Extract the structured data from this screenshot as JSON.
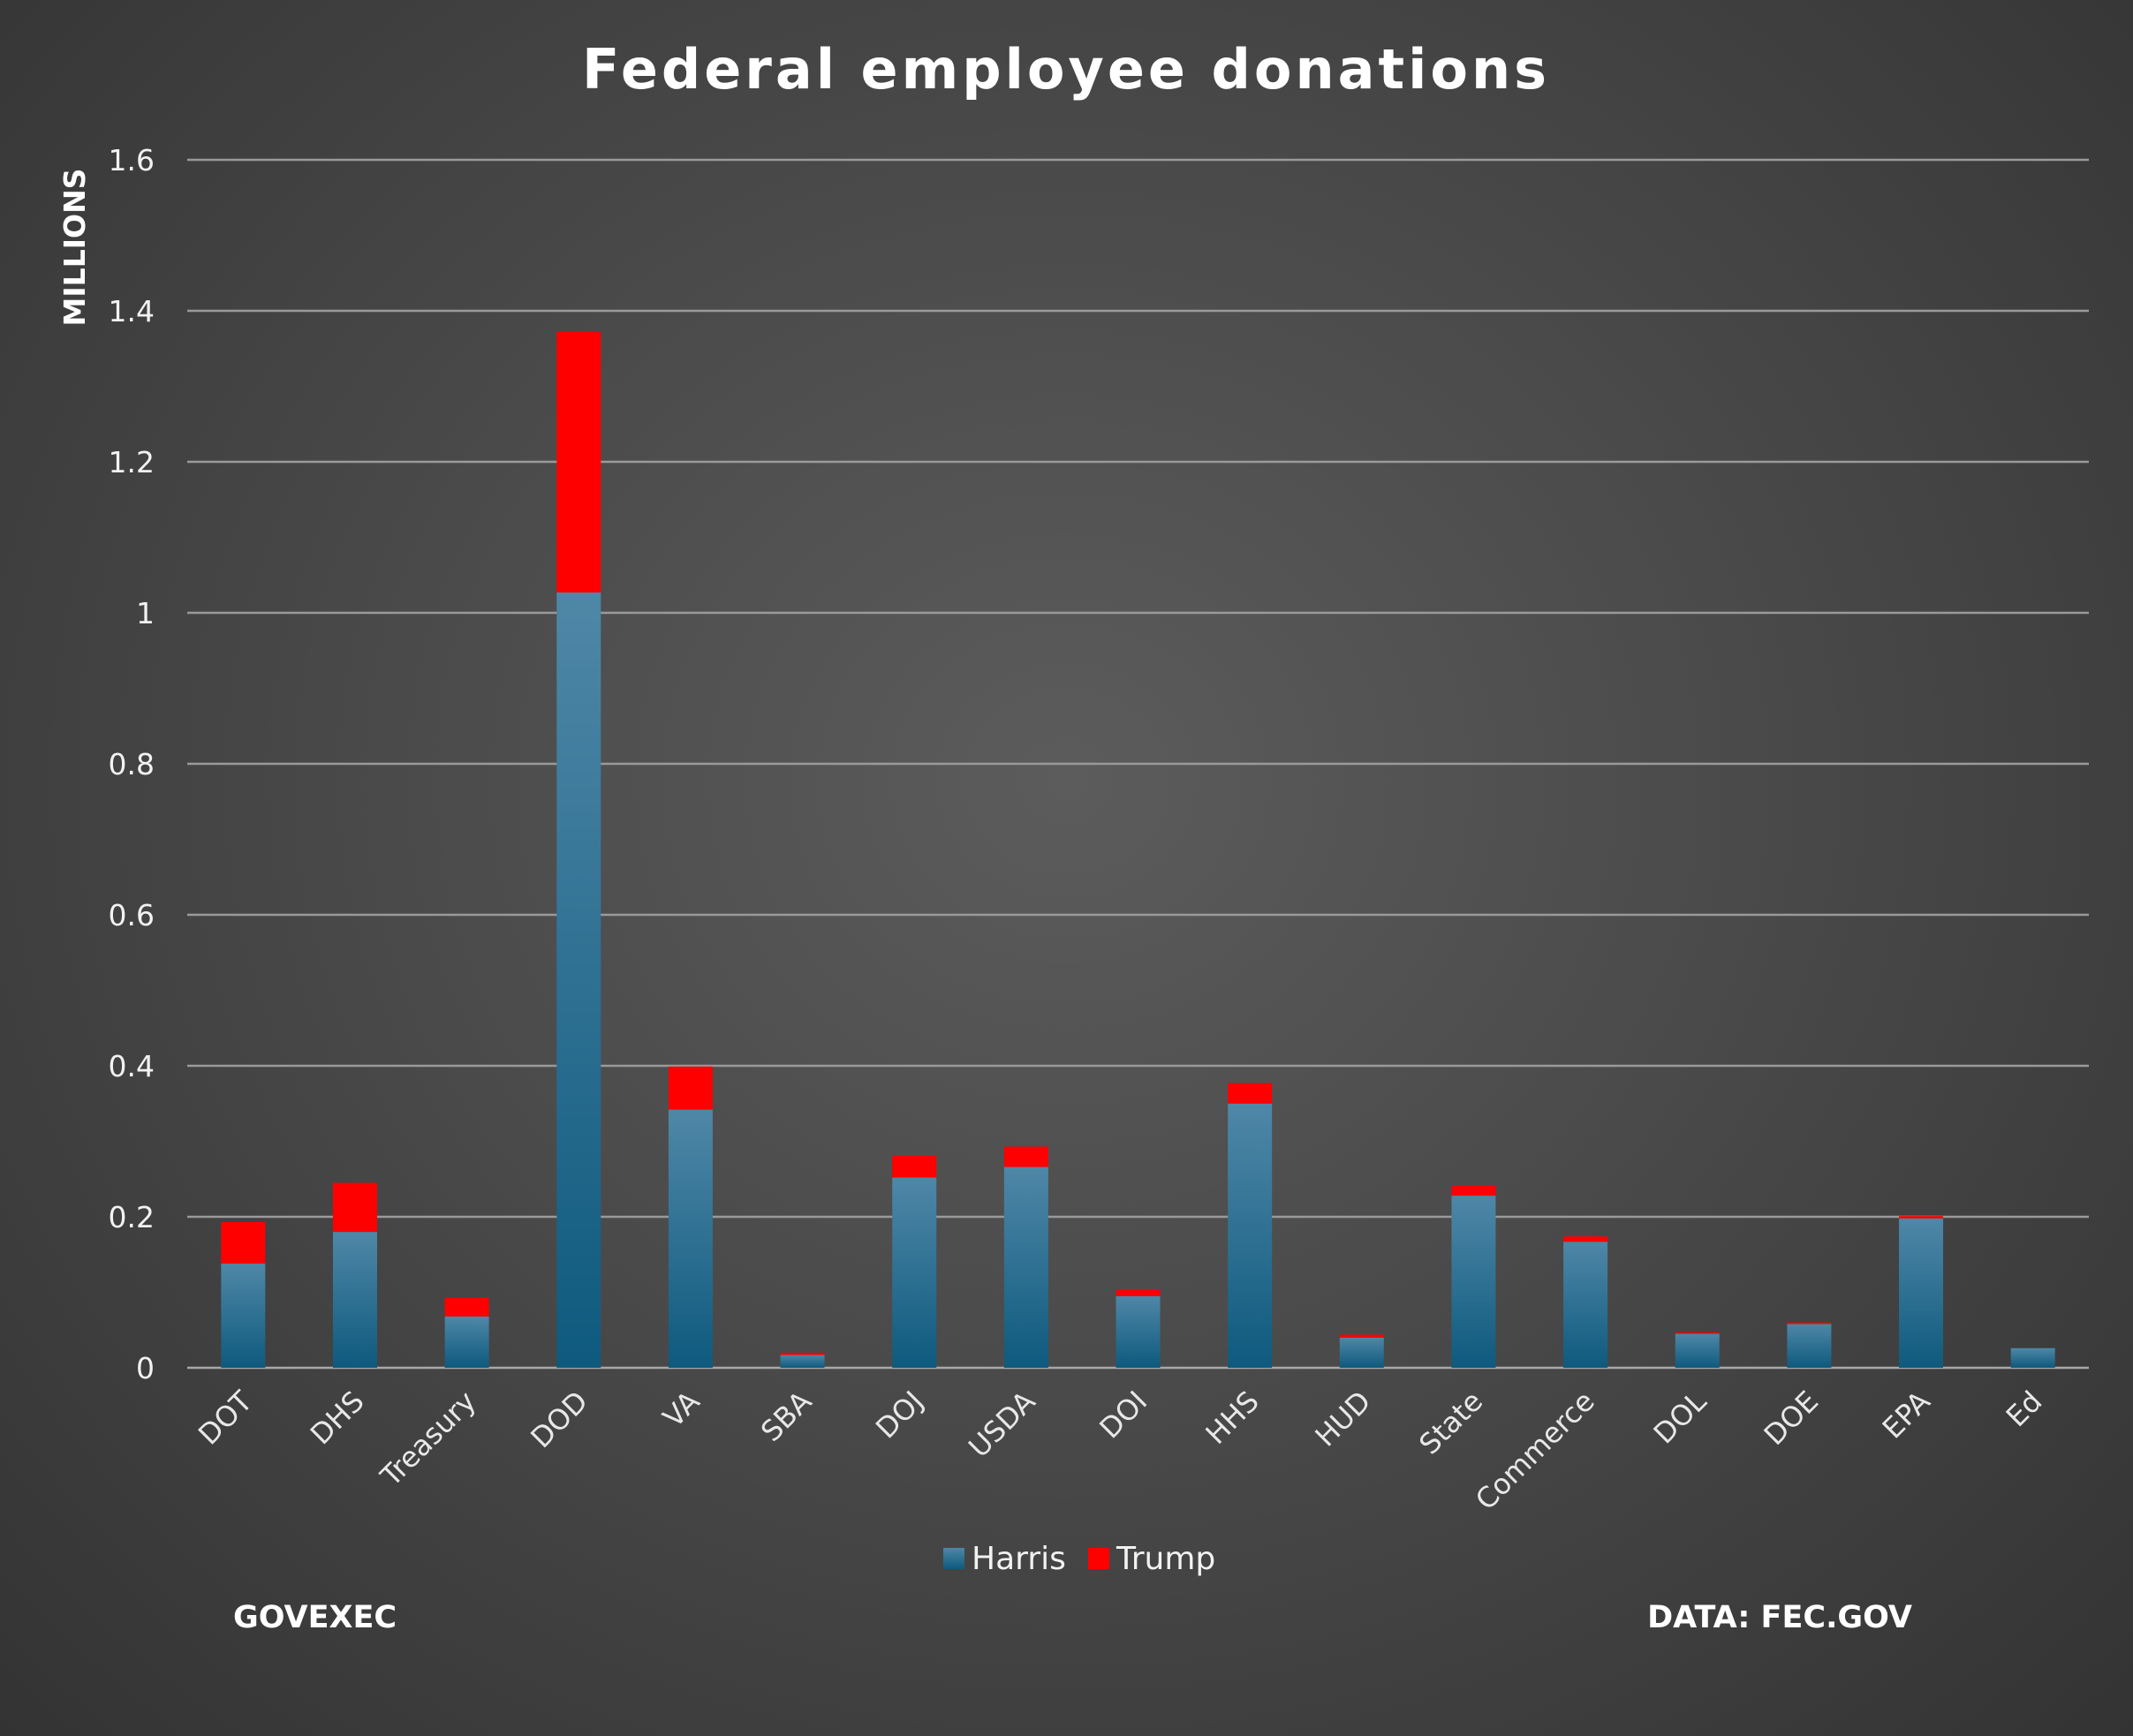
{
  "chart_data": {
    "type": "bar",
    "stacked": true,
    "title": "Federal employee donations",
    "ylabel": "MILLIONS",
    "xlabel": "",
    "ylim": [
      0,
      1.6
    ],
    "yticks": [
      "0",
      "0.2",
      "0.4",
      "0.6",
      "0.8",
      "1",
      "1.2",
      "1.4",
      "1.6"
    ],
    "ytick_values": [
      0,
      0.2,
      0.4,
      0.6,
      0.8,
      1.0,
      1.2,
      1.4,
      1.6
    ],
    "grid": true,
    "legend_position": "bottom",
    "categories": [
      "DOT",
      "DHS",
      "Treasury",
      "DOD",
      "VA",
      "SBA",
      "DOJ",
      "USDA",
      "DOI",
      "HHS",
      "HUD",
      "State",
      "Commerce",
      "DOL",
      "DOE",
      "EPA",
      "Ed"
    ],
    "series": [
      {
        "name": "Harris",
        "color": "#0e5a7e",
        "values": [
          0.138,
          0.18,
          0.068,
          1.027,
          0.342,
          0.017,
          0.252,
          0.266,
          0.095,
          0.35,
          0.04,
          0.228,
          0.167,
          0.045,
          0.058,
          0.198,
          0.026
        ]
      },
      {
        "name": "Trump",
        "color": "#ff0000",
        "values": [
          0.055,
          0.065,
          0.025,
          0.345,
          0.057,
          0.003,
          0.029,
          0.027,
          0.008,
          0.027,
          0.004,
          0.013,
          0.007,
          0.002,
          0.002,
          0.003,
          0.0
        ]
      }
    ]
  },
  "footer": {
    "left": "GOVEXEC",
    "right": "DATA: FEC.GOV"
  },
  "colors": {
    "background": "#4a4a4a",
    "gridline": "#9a9a9a",
    "harris_top": "#4d86a6",
    "harris_bottom": "#0e5a7e",
    "trump": "#ff0000"
  }
}
